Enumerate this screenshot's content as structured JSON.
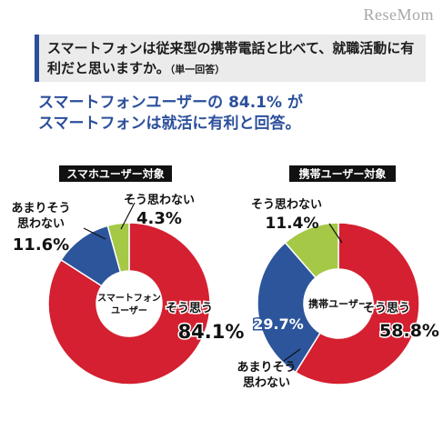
{
  "watermark": "ReseMom",
  "question": {
    "text": "スマートフォンは従来型の携帯電話と比べて、就職活動に有利だと思いますか。",
    "note": "（単一回答）"
  },
  "headline": {
    "line1": "スマートフォンユーザーの 84.1% が",
    "line2": "スマートフォンは就活に有利と回答。"
  },
  "colors": {
    "yes": "#d42030",
    "no": "#2c559b",
    "neutral": "#a5c846",
    "accent": "#2c4f9b"
  },
  "chart_data": [
    {
      "type": "pie",
      "title": "スマホユーザー対象",
      "center_label": [
        "スマートフォン",
        "ユーザー"
      ],
      "slices": [
        {
          "label": "そう思う",
          "value": 84.1,
          "value_text": "84.1%",
          "color": "#d42030"
        },
        {
          "label": "あまりそう思わない",
          "label_lines": [
            "あまりそう",
            "思わない"
          ],
          "value": 11.6,
          "value_text": "11.6%",
          "color": "#2c559b"
        },
        {
          "label": "そう思わない",
          "value": 4.3,
          "value_text": "4.3%",
          "color": "#a5c846"
        }
      ]
    },
    {
      "type": "pie",
      "title": "携帯ユーザー対象",
      "center_label": [
        "携帯ユーザー"
      ],
      "slices": [
        {
          "label": "そう思う",
          "value": 58.8,
          "value_text": "58.8%",
          "color": "#d42030"
        },
        {
          "label": "あまりそう思わない",
          "label_lines": [
            "あまりそう",
            "思わない"
          ],
          "value": 29.7,
          "value_text": "29.7%",
          "color": "#2c559b"
        },
        {
          "label": "そう思わない",
          "value": 11.4,
          "value_text": "11.4%",
          "color": "#a5c846"
        }
      ]
    }
  ]
}
